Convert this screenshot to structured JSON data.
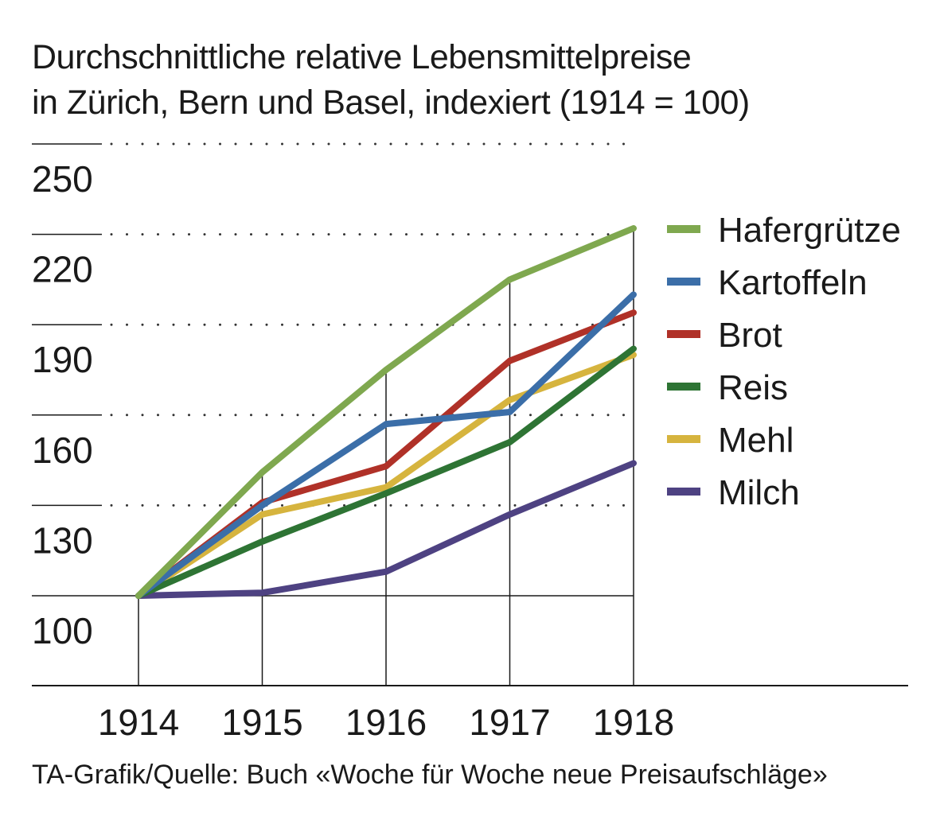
{
  "chart_data": {
    "type": "line",
    "title": "Durchschnittliche relative Lebensmittelpreise",
    "subtitle": "in Zürich, Bern und Basel, indexiert (1914 = 100)",
    "x": [
      "1914",
      "1915",
      "1916",
      "1917",
      "1918"
    ],
    "yticks": [
      100,
      130,
      160,
      190,
      220,
      250
    ],
    "ylim": [
      70,
      250
    ],
    "grid": true,
    "legend": "right",
    "series": [
      {
        "name": "Hafergrütze",
        "color": "#7fa84f",
        "values": [
          100,
          141,
          175,
          205,
          222
        ]
      },
      {
        "name": "Kartoffeln",
        "color": "#3b6ea8",
        "values": [
          100,
          130,
          157,
          161,
          200
        ]
      },
      {
        "name": "Brot",
        "color": "#b03128",
        "values": [
          100,
          131,
          143,
          178,
          194
        ]
      },
      {
        "name": "Reis",
        "color": "#2e7434",
        "values": [
          100,
          118,
          134,
          151,
          182
        ]
      },
      {
        "name": "Mehl",
        "color": "#d6b43e",
        "values": [
          100,
          127,
          136,
          165,
          180
        ]
      },
      {
        "name": "Milch",
        "color": "#4e4282",
        "values": [
          100,
          101,
          108,
          127,
          144
        ]
      }
    ]
  },
  "source": "TA-Grafik/Quelle: Buch «Woche für Woche neue Preisaufschläge»"
}
